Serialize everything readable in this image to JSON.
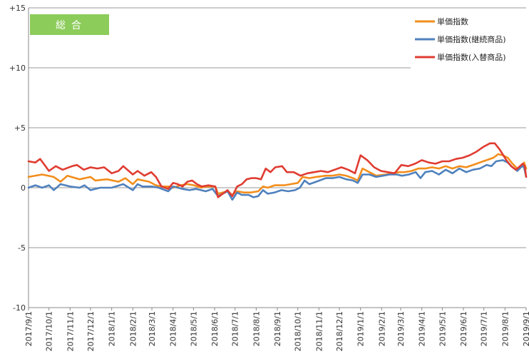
{
  "chart_data": {
    "type": "line",
    "badge": "総合",
    "x_start": "2017-09-01",
    "x_end": "2019-09-01",
    "ylim": [
      -10,
      15
    ],
    "yticks": [
      {
        "value": 15,
        "label": "+15"
      },
      {
        "value": 10,
        "label": "+10"
      },
      {
        "value": 5,
        "label": "+5"
      },
      {
        "value": 0,
        "label": "0"
      },
      {
        "value": -5,
        "label": "-5"
      },
      {
        "value": -10,
        "label": "-10"
      }
    ],
    "xticks": [
      "2017/9/1",
      "2017/10/1",
      "2017/11/1",
      "2017/12/1",
      "2018/1/1",
      "2018/2/1",
      "2018/3/1",
      "2018/4/1",
      "2018/5/1",
      "2018/6/1",
      "2018/7/1",
      "2018/8/1",
      "2018/9/1",
      "2018/10/1",
      "2018/11/1",
      "2018/12/1",
      "2019/1/1",
      "2019/2/1",
      "2019/3/1",
      "2019/4/1",
      "2019/5/1",
      "2019/6/1",
      "2019/7/1",
      "2019/8/1",
      "2019/9/1"
    ],
    "grid": "horizontal",
    "legend_position": "top-right",
    "series": [
      {
        "name": "単価指数",
        "color": "#f28e1c",
        "points": [
          [
            "2017-09-01",
            0.9
          ],
          [
            "2017-09-21",
            1.1
          ],
          [
            "2017-10-08",
            0.9
          ],
          [
            "2017-10-18",
            0.5
          ],
          [
            "2017-10-28",
            1.0
          ],
          [
            "2017-11-15",
            0.7
          ],
          [
            "2017-12-01",
            0.9
          ],
          [
            "2017-12-08",
            0.6
          ],
          [
            "2017-12-25",
            0.7
          ],
          [
            "2018-01-11",
            0.5
          ],
          [
            "2018-01-21",
            0.8
          ],
          [
            "2018-02-01",
            0.3
          ],
          [
            "2018-02-08",
            0.7
          ],
          [
            "2018-02-25",
            0.5
          ],
          [
            "2018-03-07",
            0.2
          ],
          [
            "2018-03-15",
            0.1
          ],
          [
            "2018-03-25",
            0.1
          ],
          [
            "2018-04-01",
            0.0
          ],
          [
            "2018-04-12",
            0.2
          ],
          [
            "2018-04-22",
            0.3
          ],
          [
            "2018-05-02",
            0.2
          ],
          [
            "2018-05-12",
            0.0
          ],
          [
            "2018-05-19",
            0.1
          ],
          [
            "2018-06-02",
            0.1
          ],
          [
            "2018-06-06",
            -0.5
          ],
          [
            "2018-06-20",
            -0.3
          ],
          [
            "2018-06-27",
            -0.6
          ],
          [
            "2018-07-04",
            -0.3
          ],
          [
            "2018-07-14",
            -0.4
          ],
          [
            "2018-07-24",
            -0.4
          ],
          [
            "2018-08-04",
            -0.3
          ],
          [
            "2018-08-11",
            0.1
          ],
          [
            "2018-08-18",
            0.0
          ],
          [
            "2018-08-28",
            0.2
          ],
          [
            "2018-09-11",
            0.2
          ],
          [
            "2018-09-21",
            0.3
          ],
          [
            "2018-10-01",
            0.4
          ],
          [
            "2018-10-08",
            0.9
          ],
          [
            "2018-10-18",
            0.8
          ],
          [
            "2018-10-28",
            0.9
          ],
          [
            "2018-11-11",
            1.0
          ],
          [
            "2018-11-21",
            1.0
          ],
          [
            "2018-12-01",
            1.1
          ],
          [
            "2018-12-11",
            1.0
          ],
          [
            "2018-12-21",
            0.8
          ],
          [
            "2018-12-28",
            0.6
          ],
          [
            "2019-01-04",
            1.6
          ],
          [
            "2019-01-14",
            1.3
          ],
          [
            "2019-01-24",
            1.0
          ],
          [
            "2019-02-07",
            1.1
          ],
          [
            "2019-02-17",
            1.2
          ],
          [
            "2019-02-27",
            1.3
          ],
          [
            "2019-03-07",
            1.3
          ],
          [
            "2019-03-17",
            1.4
          ],
          [
            "2019-03-27",
            1.6
          ],
          [
            "2019-04-06",
            1.6
          ],
          [
            "2019-04-16",
            1.7
          ],
          [
            "2019-04-26",
            1.6
          ],
          [
            "2019-05-06",
            1.8
          ],
          [
            "2019-05-16",
            1.6
          ],
          [
            "2019-05-26",
            1.8
          ],
          [
            "2019-06-05",
            1.7
          ],
          [
            "2019-06-15",
            1.9
          ],
          [
            "2019-06-25",
            2.1
          ],
          [
            "2019-07-05",
            2.3
          ],
          [
            "2019-07-15",
            2.5
          ],
          [
            "2019-07-22",
            2.8
          ],
          [
            "2019-07-29",
            2.7
          ],
          [
            "2019-08-05",
            2.5
          ],
          [
            "2019-08-12",
            2.0
          ],
          [
            "2019-08-19",
            1.6
          ],
          [
            "2019-08-26",
            1.8
          ],
          [
            "2019-08-29",
            2.1
          ],
          [
            "2019-09-01",
            1.6
          ]
        ]
      },
      {
        "name": "単価指数(継続商品)",
        "color": "#4f81bd",
        "points": [
          [
            "2017-09-01",
            0.0
          ],
          [
            "2017-09-11",
            0.2
          ],
          [
            "2017-09-21",
            0.0
          ],
          [
            "2017-10-01",
            0.2
          ],
          [
            "2017-10-08",
            -0.2
          ],
          [
            "2017-10-18",
            0.3
          ],
          [
            "2017-11-01",
            0.1
          ],
          [
            "2017-11-15",
            0.0
          ],
          [
            "2017-11-22",
            0.2
          ],
          [
            "2017-12-01",
            -0.2
          ],
          [
            "2017-12-15",
            0.0
          ],
          [
            "2018-01-01",
            0.0
          ],
          [
            "2018-01-18",
            0.3
          ],
          [
            "2018-02-01",
            -0.2
          ],
          [
            "2018-02-08",
            0.3
          ],
          [
            "2018-02-15",
            0.1
          ],
          [
            "2018-03-01",
            0.1
          ],
          [
            "2018-03-11",
            0.0
          ],
          [
            "2018-03-25",
            -0.3
          ],
          [
            "2018-04-01",
            0.1
          ],
          [
            "2018-04-15",
            -0.1
          ],
          [
            "2018-04-25",
            -0.2
          ],
          [
            "2018-05-05",
            -0.1
          ],
          [
            "2018-05-19",
            -0.3
          ],
          [
            "2018-05-29",
            -0.1
          ],
          [
            "2018-06-06",
            -0.7
          ],
          [
            "2018-06-20",
            -0.3
          ],
          [
            "2018-06-27",
            -1.0
          ],
          [
            "2018-07-04",
            -0.4
          ],
          [
            "2018-07-11",
            -0.6
          ],
          [
            "2018-07-21",
            -0.6
          ],
          [
            "2018-07-28",
            -0.8
          ],
          [
            "2018-08-04",
            -0.7
          ],
          [
            "2018-08-11",
            -0.2
          ],
          [
            "2018-08-18",
            -0.5
          ],
          [
            "2018-08-28",
            -0.4
          ],
          [
            "2018-09-07",
            -0.2
          ],
          [
            "2018-09-17",
            -0.3
          ],
          [
            "2018-09-27",
            -0.2
          ],
          [
            "2018-10-04",
            0.0
          ],
          [
            "2018-10-11",
            0.6
          ],
          [
            "2018-10-18",
            0.3
          ],
          [
            "2018-10-28",
            0.5
          ],
          [
            "2018-11-11",
            0.8
          ],
          [
            "2018-11-21",
            0.8
          ],
          [
            "2018-12-01",
            0.9
          ],
          [
            "2018-12-11",
            0.7
          ],
          [
            "2018-12-21",
            0.6
          ],
          [
            "2018-12-28",
            0.4
          ],
          [
            "2019-01-04",
            1.1
          ],
          [
            "2019-01-14",
            1.1
          ],
          [
            "2019-01-24",
            0.9
          ],
          [
            "2019-02-03",
            1.0
          ],
          [
            "2019-02-13",
            1.1
          ],
          [
            "2019-02-23",
            1.1
          ],
          [
            "2019-03-03",
            1.0
          ],
          [
            "2019-03-13",
            1.1
          ],
          [
            "2019-03-23",
            1.3
          ],
          [
            "2019-03-30",
            0.8
          ],
          [
            "2019-04-06",
            1.3
          ],
          [
            "2019-04-16",
            1.4
          ],
          [
            "2019-04-26",
            1.1
          ],
          [
            "2019-05-06",
            1.5
          ],
          [
            "2019-05-16",
            1.2
          ],
          [
            "2019-05-26",
            1.6
          ],
          [
            "2019-06-05",
            1.3
          ],
          [
            "2019-06-15",
            1.5
          ],
          [
            "2019-06-25",
            1.6
          ],
          [
            "2019-07-05",
            1.9
          ],
          [
            "2019-07-12",
            1.8
          ],
          [
            "2019-07-19",
            2.2
          ],
          [
            "2019-07-29",
            2.3
          ],
          [
            "2019-08-05",
            2.1
          ],
          [
            "2019-08-12",
            1.7
          ],
          [
            "2019-08-19",
            1.4
          ],
          [
            "2019-08-26",
            1.8
          ],
          [
            "2019-08-29",
            1.7
          ],
          [
            "2019-09-01",
            0.9
          ]
        ]
      },
      {
        "name": "単価指数(入替商品)",
        "color": "#e03c31",
        "points": [
          [
            "2017-09-01",
            2.2
          ],
          [
            "2017-09-11",
            2.1
          ],
          [
            "2017-09-18",
            2.4
          ],
          [
            "2017-10-01",
            1.4
          ],
          [
            "2017-10-11",
            1.8
          ],
          [
            "2017-10-21",
            1.5
          ],
          [
            "2017-11-04",
            1.8
          ],
          [
            "2017-11-11",
            1.9
          ],
          [
            "2017-11-21",
            1.5
          ],
          [
            "2017-12-01",
            1.7
          ],
          [
            "2017-12-11",
            1.6
          ],
          [
            "2017-12-21",
            1.7
          ],
          [
            "2018-01-01",
            1.2
          ],
          [
            "2018-01-11",
            1.4
          ],
          [
            "2018-01-18",
            1.8
          ],
          [
            "2018-02-01",
            1.1
          ],
          [
            "2018-02-08",
            1.4
          ],
          [
            "2018-02-18",
            1.0
          ],
          [
            "2018-02-28",
            1.3
          ],
          [
            "2018-03-07",
            0.9
          ],
          [
            "2018-03-15",
            0.1
          ],
          [
            "2018-03-25",
            -0.1
          ],
          [
            "2018-04-01",
            0.4
          ],
          [
            "2018-04-08",
            0.3
          ],
          [
            "2018-04-15",
            0.1
          ],
          [
            "2018-04-22",
            0.5
          ],
          [
            "2018-04-29",
            0.6
          ],
          [
            "2018-05-06",
            0.3
          ],
          [
            "2018-05-13",
            0.1
          ],
          [
            "2018-05-23",
            0.2
          ],
          [
            "2018-06-02",
            0.1
          ],
          [
            "2018-06-06",
            -0.8
          ],
          [
            "2018-06-20",
            -0.2
          ],
          [
            "2018-06-27",
            -0.7
          ],
          [
            "2018-07-04",
            0.1
          ],
          [
            "2018-07-11",
            0.3
          ],
          [
            "2018-07-18",
            0.7
          ],
          [
            "2018-07-25",
            0.8
          ],
          [
            "2018-08-01",
            0.8
          ],
          [
            "2018-08-08",
            0.7
          ],
          [
            "2018-08-15",
            1.6
          ],
          [
            "2018-08-22",
            1.3
          ],
          [
            "2018-08-29",
            1.7
          ],
          [
            "2018-09-08",
            1.8
          ],
          [
            "2018-09-15",
            1.3
          ],
          [
            "2018-09-25",
            1.3
          ],
          [
            "2018-10-05",
            1.0
          ],
          [
            "2018-10-15",
            1.2
          ],
          [
            "2018-10-25",
            1.3
          ],
          [
            "2018-11-04",
            1.4
          ],
          [
            "2018-11-14",
            1.3
          ],
          [
            "2018-11-24",
            1.5
          ],
          [
            "2018-12-04",
            1.7
          ],
          [
            "2018-12-14",
            1.5
          ],
          [
            "2018-12-24",
            1.2
          ],
          [
            "2019-01-01",
            2.7
          ],
          [
            "2019-01-11",
            2.3
          ],
          [
            "2019-01-21",
            1.7
          ],
          [
            "2019-01-31",
            1.4
          ],
          [
            "2019-02-10",
            1.3
          ],
          [
            "2019-02-20",
            1.2
          ],
          [
            "2019-03-02",
            1.9
          ],
          [
            "2019-03-12",
            1.8
          ],
          [
            "2019-03-22",
            2.0
          ],
          [
            "2019-04-01",
            2.3
          ],
          [
            "2019-04-11",
            2.1
          ],
          [
            "2019-04-21",
            2.0
          ],
          [
            "2019-05-01",
            2.2
          ],
          [
            "2019-05-11",
            2.2
          ],
          [
            "2019-05-21",
            2.4
          ],
          [
            "2019-05-31",
            2.5
          ],
          [
            "2019-06-10",
            2.7
          ],
          [
            "2019-06-20",
            3.0
          ],
          [
            "2019-06-30",
            3.4
          ],
          [
            "2019-07-10",
            3.7
          ],
          [
            "2019-07-17",
            3.7
          ],
          [
            "2019-07-24",
            3.2
          ],
          [
            "2019-08-03",
            2.3
          ],
          [
            "2019-08-10",
            1.8
          ],
          [
            "2019-08-17",
            1.5
          ],
          [
            "2019-08-27",
            2.0
          ],
          [
            "2019-08-30",
            1.8
          ],
          [
            "2019-09-01",
            0.9
          ]
        ]
      }
    ]
  }
}
